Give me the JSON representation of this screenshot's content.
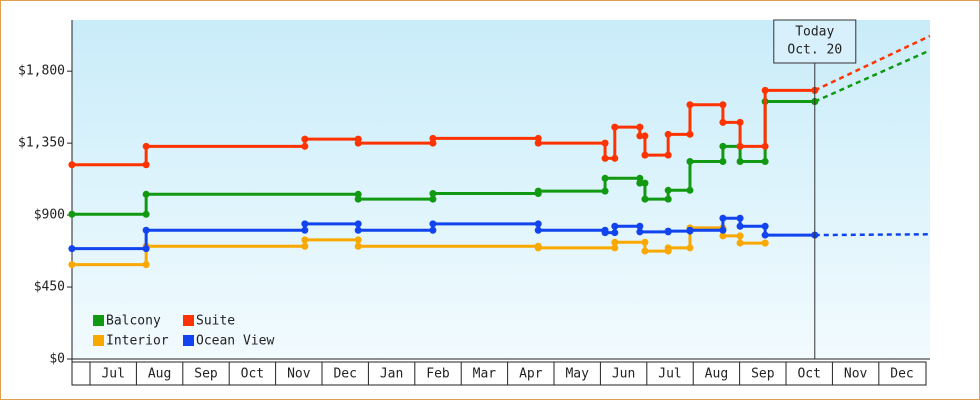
{
  "chart_data": {
    "type": "step-line",
    "ylim": [
      0,
      2120
    ],
    "yticks": [
      {
        "value": 0,
        "label": "$0"
      },
      {
        "value": 450,
        "label": "$450"
      },
      {
        "value": 900,
        "label": "$900"
      },
      {
        "value": 1350,
        "label": "$1,350"
      },
      {
        "value": 1800,
        "label": "$1,800"
      }
    ],
    "xlim": [
      -0.388,
      18.103
    ],
    "xticks": [
      {
        "value": 0.5,
        "label": "Jul"
      },
      {
        "value": 1.5,
        "label": "Aug"
      },
      {
        "value": 2.5,
        "label": "Sep"
      },
      {
        "value": 3.5,
        "label": "Oct"
      },
      {
        "value": 4.5,
        "label": "Nov"
      },
      {
        "value": 5.5,
        "label": "Dec"
      },
      {
        "value": 6.5,
        "label": "Jan"
      },
      {
        "value": 7.5,
        "label": "Feb"
      },
      {
        "value": 8.5,
        "label": "Mar"
      },
      {
        "value": 9.5,
        "label": "Apr"
      },
      {
        "value": 10.5,
        "label": "May"
      },
      {
        "value": 11.5,
        "label": "Jun"
      },
      {
        "value": 12.5,
        "label": "Jul"
      },
      {
        "value": 13.5,
        "label": "Aug"
      },
      {
        "value": 14.5,
        "label": "Sep"
      },
      {
        "value": 15.5,
        "label": "Oct"
      },
      {
        "value": 16.5,
        "label": "Nov"
      },
      {
        "value": 17.5,
        "label": "Dec"
      }
    ],
    "annotation": {
      "x": 15.62,
      "lines": [
        "Today",
        "Oct. 20"
      ]
    },
    "series": [
      {
        "name": "Balcony",
        "color": "#119911",
        "x": [
          -0.39,
          1.21,
          5.78,
          7.39,
          9.66,
          11.1,
          11.85,
          11.96,
          12.46,
          12.93,
          13.64,
          14.01,
          14.55,
          15.62
        ],
        "values": [
          905,
          1030,
          1000,
          1035,
          1050,
          1130,
          1100,
          1000,
          1055,
          1235,
          1330,
          1235,
          1610,
          1610
        ],
        "projection_x": [
          15.62,
          18.1
        ],
        "projection_values": [
          1610,
          1930
        ]
      },
      {
        "name": "Suite",
        "color": "#ff3300",
        "x": [
          -0.39,
          1.21,
          4.63,
          5.78,
          7.39,
          9.66,
          11.1,
          11.31,
          11.85,
          11.96,
          12.46,
          12.93,
          13.64,
          14.01,
          14.55,
          15.62
        ],
        "values": [
          1215,
          1330,
          1375,
          1350,
          1380,
          1350,
          1255,
          1450,
          1395,
          1275,
          1405,
          1590,
          1480,
          1330,
          1680,
          1680
        ],
        "projection_x": [
          15.62,
          18.1
        ],
        "projection_values": [
          1680,
          2020
        ]
      },
      {
        "name": "Interior",
        "color": "#f9a800",
        "x": [
          -0.39,
          1.21,
          4.63,
          5.78,
          9.66,
          11.31,
          11.96,
          12.46,
          12.93,
          13.64,
          14.01,
          14.55
        ],
        "values": [
          590,
          705,
          745,
          705,
          695,
          730,
          675,
          695,
          820,
          770,
          725,
          725
        ]
      },
      {
        "name": "Ocean View",
        "color": "#1144ee",
        "x": [
          -0.39,
          1.21,
          4.63,
          5.78,
          7.39,
          9.66,
          11.1,
          11.31,
          11.85,
          12.46,
          12.93,
          13.64,
          14.01,
          14.55,
          15.62
        ],
        "values": [
          690,
          805,
          845,
          805,
          845,
          805,
          790,
          830,
          795,
          800,
          805,
          880,
          830,
          775,
          775
        ],
        "projection_x": [
          15.62,
          18.1
        ],
        "projection_values": [
          775,
          780
        ]
      }
    ]
  }
}
